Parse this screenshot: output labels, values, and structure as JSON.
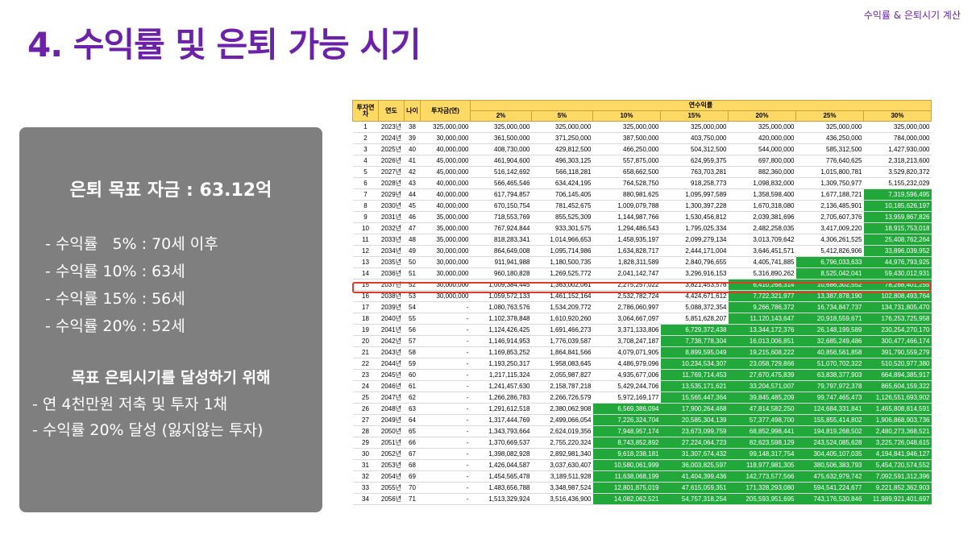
{
  "header": {
    "corner_label": "수익률 & 은퇴시기 계산",
    "title": "4. 수익률 및 은퇴 가능 시기"
  },
  "panel": {
    "goal": "은퇴 목표 자금 : 63.12억",
    "rates": [
      "- 수익률   5% : 70세 이후",
      "- 수익률 10% : 63세",
      "- 수익률 15% : 56세",
      "- 수익률 20% : 52세"
    ],
    "howto_title": "목표 은퇴시기를 달성하기 위해",
    "howto": [
      "- 연 4천만원 저축 및 투자 1채",
      "- 수익률 20% 달성 (잃지않는 투자)"
    ]
  },
  "table": {
    "headers": {
      "period": "투자연차",
      "year": "연도",
      "age": "나이",
      "invest": "투자금(연)",
      "annual_rate": "연수익률",
      "rates": [
        "2%",
        "5%",
        "10%",
        "15%",
        "20%",
        "25%",
        "30%"
      ]
    },
    "highlight_color": "#22a83a",
    "highlight_row_color": "#e03a2a",
    "highlighted_period": "15",
    "rows": [
      {
        "p": "1",
        "y": "2023년",
        "a": "38",
        "i": "325,000,000",
        "v": [
          "325,000,000",
          "325,000,000",
          "325,000,000",
          "325,000,000",
          "325,000,000",
          "325,000,000",
          "325,000,000"
        ],
        "g": 0
      },
      {
        "p": "2",
        "y": "2024년",
        "a": "39",
        "i": "30,000,000",
        "v": [
          "361,500,000",
          "371,250,000",
          "387,500,000",
          "403,750,000",
          "420,000,000",
          "436,250,000",
          "784,000,000"
        ],
        "g": 0
      },
      {
        "p": "3",
        "y": "2025년",
        "a": "40",
        "i": "40,000,000",
        "v": [
          "408,730,000",
          "429,812,500",
          "466,250,000",
          "504,312,500",
          "544,000,000",
          "585,312,500",
          "1,427,930,000"
        ],
        "g": 0
      },
      {
        "p": "4",
        "y": "2026년",
        "a": "41",
        "i": "45,000,000",
        "v": [
          "461,904,600",
          "496,303,125",
          "557,875,000",
          "624,959,375",
          "697,800,000",
          "776,640,625",
          "2,318,213,600"
        ],
        "g": 0
      },
      {
        "p": "5",
        "y": "2027년",
        "a": "42",
        "i": "45,000,000",
        "v": [
          "516,142,692",
          "566,118,281",
          "658,662,500",
          "763,703,281",
          "882,360,000",
          "1,015,800,781",
          "3,529,820,372"
        ],
        "g": 0
      },
      {
        "p": "6",
        "y": "2028년",
        "a": "43",
        "i": "40,000,000",
        "v": [
          "566,465,546",
          "634,424,195",
          "764,528,750",
          "918,258,773",
          "1,098,832,000",
          "1,309,750,977",
          "5,155,232,029"
        ],
        "g": 0
      },
      {
        "p": "7",
        "y": "2029년",
        "a": "44",
        "i": "40,000,000",
        "v": [
          "617,794,857",
          "706,145,405",
          "880,981,625",
          "1,095,997,589",
          "1,358,598,400",
          "1,677,188,721",
          "7,319,596,495"
        ],
        "g": 1
      },
      {
        "p": "8",
        "y": "2030년",
        "a": "45",
        "i": "40,000,000",
        "v": [
          "670,150,754",
          "781,452,675",
          "1,009,079,788",
          "1,300,397,228",
          "1,670,318,080",
          "2,136,485,901",
          "10,185,626,197"
        ],
        "g": 1
      },
      {
        "p": "9",
        "y": "2031년",
        "a": "46",
        "i": "35,000,000",
        "v": [
          "718,553,769",
          "855,525,309",
          "1,144,987,766",
          "1,530,456,812",
          "2,039,381,696",
          "2,705,607,376",
          "13,959,867,826"
        ],
        "g": 1
      },
      {
        "p": "10",
        "y": "2032년",
        "a": "47",
        "i": "35,000,000",
        "v": [
          "767,924,844",
          "933,301,575",
          "1,294,486,543",
          "1,795,025,334",
          "2,482,258,035",
          "3,417,009,220",
          "18,915,753,018"
        ],
        "g": 1
      },
      {
        "p": "11",
        "y": "2033년",
        "a": "48",
        "i": "35,000,000",
        "v": [
          "818,283,341",
          "1,014,966,653",
          "1,458,935,197",
          "2,099,279,134",
          "3,013,709,642",
          "4,306,261,525",
          "25,408,762,264"
        ],
        "g": 1
      },
      {
        "p": "12",
        "y": "2034년",
        "a": "49",
        "i": "30,000,000",
        "v": [
          "864,649,008",
          "1,095,714,986",
          "1,634,828,717",
          "2,444,171,004",
          "3,646,451,571",
          "5,412,826,906",
          "33,896,039,952"
        ],
        "g": 1
      },
      {
        "p": "13",
        "y": "2035년",
        "a": "50",
        "i": "30,000,000",
        "v": [
          "911,941,988",
          "1,180,500,735",
          "1,828,311,589",
          "2,840,796,655",
          "4,405,741,885",
          "6,796,033,633",
          "44,976,793,925"
        ],
        "g": 2
      },
      {
        "p": "14",
        "y": "2036년",
        "a": "51",
        "i": "30,000,000",
        "v": [
          "960,180,828",
          "1,269,525,772",
          "2,041,142,747",
          "3,296,916,153",
          "5,316,890,262",
          "8,525,042,041",
          "59,430,012,931"
        ],
        "g": 2
      },
      {
        "p": "15",
        "y": "2037년",
        "a": "52",
        "i": "30,000,000",
        "v": [
          "1,009,384,445",
          "1,363,002,061",
          "2,275,257,022",
          "3,821,453,576",
          "6,410,268,314",
          "10,686,302,552",
          "78,268,401,255"
        ],
        "g": 3
      },
      {
        "p": "16",
        "y": "2038년",
        "a": "53",
        "i": "30,000,000",
        "v": [
          "1,059,572,133",
          "1,461,152,164",
          "2,532,782,724",
          "4,424,671,612",
          "7,722,321,977",
          "13,387,878,190",
          "102,808,493,764"
        ],
        "g": 3
      },
      {
        "p": "17",
        "y": "2039년",
        "a": "54",
        "i": "-",
        "v": [
          "1,080,763,576",
          "1,534,209,772",
          "2,786,060,997",
          "5,088,372,354",
          "9,266,786,372",
          "16,734,847,737",
          "134,731,805,470"
        ],
        "g": 3
      },
      {
        "p": "18",
        "y": "2040년",
        "a": "55",
        "i": "-",
        "v": [
          "1,102,378,848",
          "1,610,920,260",
          "3,064,667,097",
          "5,851,628,207",
          "11,120,143,647",
          "20,918,559,671",
          "176,253,725,958"
        ],
        "g": 3
      },
      {
        "p": "19",
        "y": "2041년",
        "a": "56",
        "i": "-",
        "v": [
          "1,124,426,425",
          "1,691,466,273",
          "3,371,133,806",
          "6,729,372,438",
          "13,344,172,376",
          "26,148,199,589",
          "230,254,270,170"
        ],
        "g": 4
      },
      {
        "p": "20",
        "y": "2042년",
        "a": "57",
        "i": "-",
        "v": [
          "1,146,914,953",
          "1,776,039,587",
          "3,708,247,187",
          "7,738,778,304",
          "16,013,006,851",
          "32,685,249,486",
          "300,477,466,174"
        ],
        "g": 4
      },
      {
        "p": "21",
        "y": "2043년",
        "a": "58",
        "i": "-",
        "v": [
          "1,169,853,252",
          "1,864,841,566",
          "4,079,071,905",
          "8,899,595,049",
          "19,215,608,222",
          "40,856,561,858",
          "391,790,559,279"
        ],
        "g": 4
      },
      {
        "p": "22",
        "y": "2044년",
        "a": "59",
        "i": "-",
        "v": [
          "1,193,250,317",
          "1,958,083,645",
          "4,486,979,096",
          "10,234,534,307",
          "23,058,729,866",
          "51,070,702,322",
          "510,520,977,380"
        ],
        "g": 4
      },
      {
        "p": "23",
        "y": "2045년",
        "a": "60",
        "i": "-",
        "v": [
          "1,217,115,324",
          "2,055,987,827",
          "4,935,677,006",
          "11,769,714,453",
          "27,670,475,839",
          "63,838,377,903",
          "664,894,385,917"
        ],
        "g": 4
      },
      {
        "p": "24",
        "y": "2046년",
        "a": "61",
        "i": "-",
        "v": [
          "1,241,457,630",
          "2,158,787,218",
          "5,429,244,706",
          "13,535,171,621",
          "33,204,571,007",
          "79,797,972,378",
          "865,604,159,322"
        ],
        "g": 4
      },
      {
        "p": "25",
        "y": "2047년",
        "a": "62",
        "i": "-",
        "v": [
          "1,266,286,783",
          "2,266,726,579",
          "5,972,169,177",
          "15,565,447,364",
          "39,845,485,209",
          "99,747,465,473",
          "1,126,551,693,902"
        ],
        "g": 4
      },
      {
        "p": "26",
        "y": "2048년",
        "a": "63",
        "i": "-",
        "v": [
          "1,291,612,518",
          "2,380,062,908",
          "6,569,386,094",
          "17,900,264,468",
          "47,814,582,250",
          "124,684,331,841",
          "1,465,808,814,591"
        ],
        "g": 5
      },
      {
        "p": "27",
        "y": "2049년",
        "a": "64",
        "i": "-",
        "v": [
          "1,317,444,769",
          "2,499,066,054",
          "7,226,324,704",
          "20,585,304,139",
          "57,377,498,700",
          "155,855,414,802",
          "1,906,868,903,736"
        ],
        "g": 5
      },
      {
        "p": "28",
        "y": "2050년",
        "a": "65",
        "i": "-",
        "v": [
          "1,343,793,664",
          "2,624,019,356",
          "7,948,957,174",
          "23,673,099,759",
          "68,852,998,441",
          "194,819,268,502",
          "2,480,273,368,521"
        ],
        "g": 5
      },
      {
        "p": "29",
        "y": "2051년",
        "a": "66",
        "i": "-",
        "v": [
          "1,370,669,537",
          "2,755,220,324",
          "8,743,852,892",
          "27,224,064,723",
          "82,623,598,129",
          "243,524,085,628",
          "3,225,726,048,615"
        ],
        "g": 5
      },
      {
        "p": "30",
        "y": "2052년",
        "a": "67",
        "i": "-",
        "v": [
          "1,398,082,928",
          "2,892,981,340",
          "9,618,238,181",
          "31,307,674,432",
          "99,148,317,754",
          "304,405,107,035",
          "4,194,841,946,127"
        ],
        "g": 5
      },
      {
        "p": "31",
        "y": "2053년",
        "a": "68",
        "i": "-",
        "v": [
          "1,426,044,587",
          "3,037,630,407",
          "10,580,061,999",
          "36,003,825,597",
          "118,977,981,305",
          "380,506,383,793",
          "5,454,720,574,552"
        ],
        "g": 5
      },
      {
        "p": "32",
        "y": "2054년",
        "a": "69",
        "i": "-",
        "v": [
          "1,454,565,478",
          "3,189,511,928",
          "11,638,068,199",
          "41,404,399,436",
          "142,773,577,566",
          "475,632,979,742",
          "7,092,591,312,396"
        ],
        "g": 5
      },
      {
        "p": "33",
        "y": "2055년",
        "a": "70",
        "i": "-",
        "v": [
          "1,483,656,788",
          "3,348,987,524",
          "12,801,875,019",
          "47,615,059,351",
          "171,328,293,080",
          "594,541,224,677",
          "9,221,852,362,903"
        ],
        "g": 5
      },
      {
        "p": "34",
        "y": "2056년",
        "a": "71",
        "i": "-",
        "v": [
          "1,513,329,924",
          "3,516,436,900",
          "14,082,062,521",
          "54,757,318,254",
          "205,593,951,695",
          "743,176,530,846",
          "11,989,921,401,697"
        ],
        "g": 5
      }
    ]
  }
}
